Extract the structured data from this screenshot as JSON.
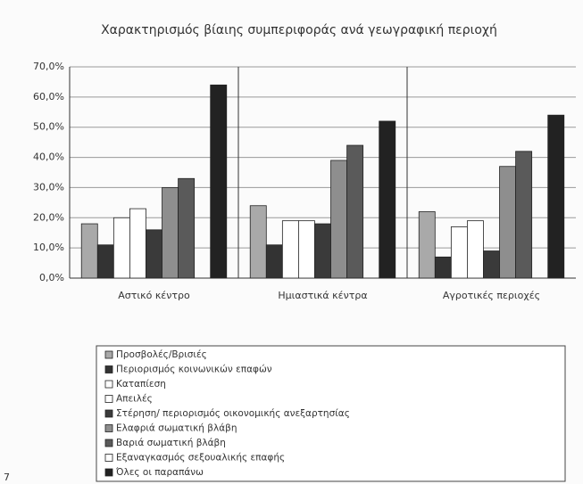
{
  "page_number": "7",
  "chart_data": {
    "type": "bar",
    "title": "Χαρακτηρισμός βίαιης συμπεριφοράς ανά γεωγραφική περιοχή",
    "categories": [
      "Αστικό κέντρο",
      "Ημιαστικά κέντρα",
      "Αγροτικές περιοχές"
    ],
    "series": [
      {
        "name": "Προσβολές/Βρισιές",
        "color": "#a9a9a9",
        "values": [
          18,
          24,
          22
        ]
      },
      {
        "name": "Περιορισμός κοινωνικών επαφών",
        "color": "#333333",
        "values": [
          11,
          11,
          7
        ]
      },
      {
        "name": "Καταπίεση",
        "color": "#ffffff",
        "values": [
          20,
          19,
          17
        ]
      },
      {
        "name": "Απειλές",
        "color": "#ffffff",
        "values": [
          23,
          19,
          19
        ]
      },
      {
        "name": "Στέρηση/ περιορισμός οικονομικής ανεξαρτησίας",
        "color": "#3a3a3a",
        "values": [
          16,
          18,
          9
        ]
      },
      {
        "name": "Ελαφριά σωματική βλάβη",
        "color": "#8e8e8e",
        "values": [
          30,
          39,
          37
        ]
      },
      {
        "name": "Βαριά σωματική βλάβη",
        "color": "#5a5a5a",
        "values": [
          33,
          44,
          42
        ]
      },
      {
        "name": "Εξαναγκασμός σεξουαλικής επαφής",
        "color": "#ffffff",
        "values": [
          0,
          0,
          0
        ]
      },
      {
        "name": "Όλες οι παραπάνω",
        "color": "#222222",
        "values": [
          64,
          52,
          54
        ]
      }
    ],
    "ylim": [
      0,
      70
    ],
    "yticks": [
      {
        "value": 0,
        "label": "0,0%"
      },
      {
        "value": 10,
        "label": "10,0%"
      },
      {
        "value": 20,
        "label": "20,0%"
      },
      {
        "value": 30,
        "label": "30,0%"
      },
      {
        "value": 40,
        "label": "40,0%"
      },
      {
        "value": 50,
        "label": "50,0%"
      },
      {
        "value": 60,
        "label": "60,0%"
      },
      {
        "value": 70,
        "label": "70,0%"
      }
    ],
    "grid": true
  }
}
